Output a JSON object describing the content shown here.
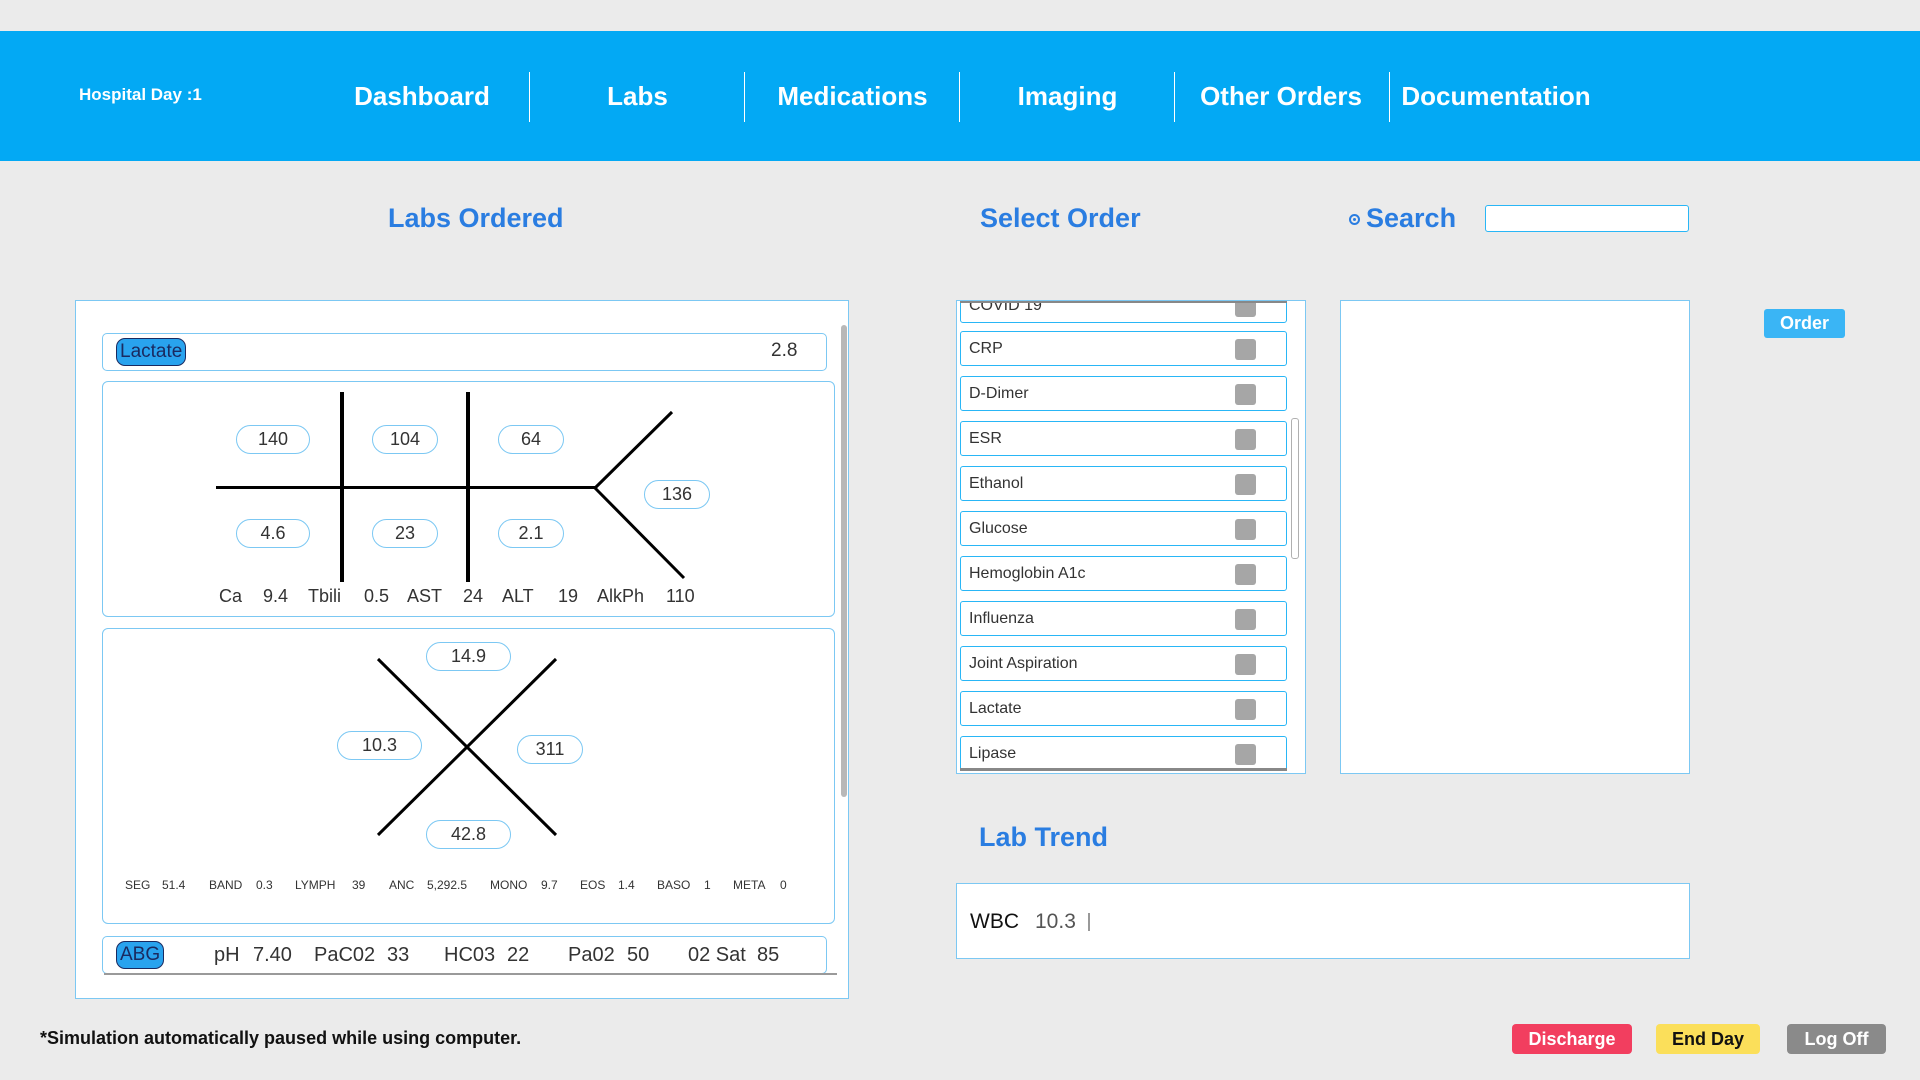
{
  "header": {
    "hospital_day": "Hospital Day :1",
    "nav": [
      "Dashboard",
      "Labs",
      "Medications",
      "Imaging",
      "Other Orders",
      "Documentation"
    ]
  },
  "titles": {
    "labs_ordered": "Labs Ordered",
    "select_order": "Select Order",
    "search": "Search",
    "lab_trend": "Lab Trend"
  },
  "search": {
    "value": ""
  },
  "lactate": {
    "tag": "Lactate",
    "value": "2.8"
  },
  "bmp": {
    "na": "140",
    "cl": "104",
    "bun": "64",
    "k": "4.6",
    "co2": "23",
    "cr": "2.1",
    "glucose": "136",
    "bottom": {
      "ca_label": "Ca",
      "ca": "9.4",
      "tbili_label": "Tbili",
      "tbili": "0.5",
      "ast_label": "AST",
      "ast": "24",
      "alt_label": "ALT",
      "alt": "19",
      "alkph_label": "AlkPh",
      "alkph": "110"
    }
  },
  "cbc": {
    "hgb": "14.9",
    "wbc": "10.3",
    "plt": "311",
    "hct": "42.8",
    "diff": [
      {
        "label": "SEG",
        "value": "51.4"
      },
      {
        "label": "BAND",
        "value": "0.3"
      },
      {
        "label": "LYMPH",
        "value": "39"
      },
      {
        "label": "ANC",
        "value": "5,292.5"
      },
      {
        "label": "MONO",
        "value": "9.7"
      },
      {
        "label": "EOS",
        "value": "1.4"
      },
      {
        "label": "BASO",
        "value": "1"
      },
      {
        "label": "META",
        "value": "0"
      }
    ]
  },
  "abg": {
    "tag": "ABG",
    "ph_label": "pH",
    "ph": "7.40",
    "paco2_label": "PaC02",
    "paco2": "33",
    "hco3_label": "HC03",
    "hco3": "22",
    "pao2_label": "Pa02",
    "pao2": "50",
    "o2sat_label": "02 Sat",
    "o2sat": "85"
  },
  "order_list": {
    "partial_top": "COVID 19",
    "items": [
      "CRP",
      "D-Dimer",
      "ESR",
      "Ethanol",
      "Glucose",
      "Hemoglobin A1c",
      "Influenza",
      "Joint Aspiration",
      "Lactate",
      "Lipase"
    ]
  },
  "order_button": "Order",
  "lab_trend": {
    "name": "WBC",
    "value": "10.3"
  },
  "footer": {
    "note": "*Simulation automatically paused while using computer.",
    "discharge": "Discharge",
    "end_day": "End Day",
    "log_off": "Log Off"
  },
  "colors": {
    "header_bg": "#03a9f4",
    "title_blue": "#2a7de1",
    "discharge": "#f23e5f",
    "end_day": "#fbdf5a",
    "log_off": "#8a8a8a"
  }
}
